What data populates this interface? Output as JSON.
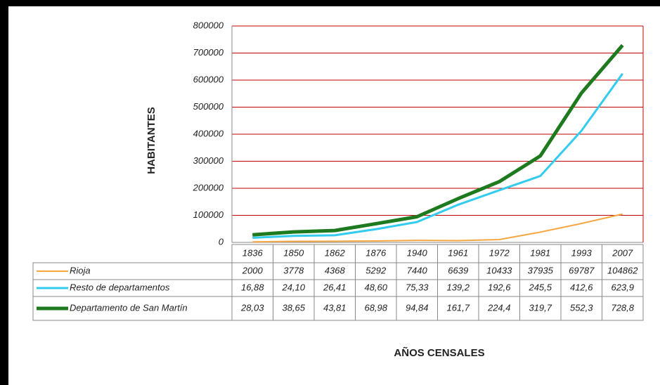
{
  "chart_data": {
    "type": "line",
    "y_label": "HABITANTES",
    "x_label": "AÑOS CENSALES",
    "categories": [
      "1836",
      "1850",
      "1862",
      "1876",
      "1940",
      "1961",
      "1972",
      "1981",
      "1993",
      "2007"
    ],
    "ylim": [
      0,
      800000
    ],
    "yticks": [
      0,
      100000,
      200000,
      300000,
      400000,
      500000,
      600000,
      700000,
      800000
    ],
    "grid": true,
    "series": [
      {
        "name": "Rioja",
        "color": "#f4a742",
        "width": 2,
        "values": [
          2000,
          3778,
          4368,
          5292,
          7440,
          6639,
          10433,
          37935,
          69787,
          104862
        ]
      },
      {
        "name": "Resto de departamentos",
        "color": "#33ccee",
        "width": 3,
        "values": [
          16880,
          24100,
          26410,
          48600,
          75330,
          139200,
          192600,
          245500,
          412600,
          623900
        ],
        "value_labels": [
          "16,88",
          "24,10",
          "26,41",
          "48,60",
          "75,33",
          "139,2",
          "192,6",
          "245,5",
          "412,6",
          "623,9"
        ]
      },
      {
        "name": "Departamento de San Martín",
        "color": "#1e7a1e",
        "width": 5,
        "values": [
          28030,
          38650,
          43810,
          68980,
          94840,
          161700,
          224400,
          319700,
          552300,
          728800
        ],
        "value_labels": [
          "28,03",
          "38,65",
          "43,81",
          "68,98",
          "94,84",
          "161,7",
          "224,4",
          "319,7",
          "552,3",
          "728,8"
        ]
      }
    ]
  }
}
